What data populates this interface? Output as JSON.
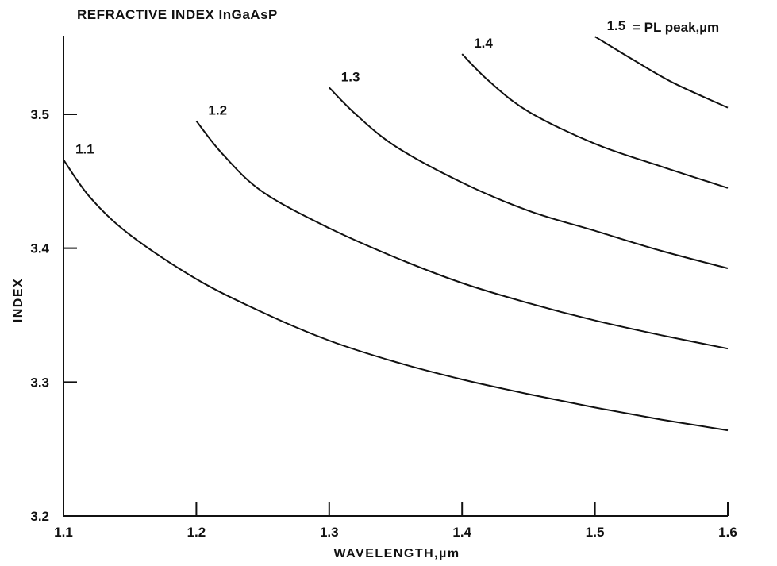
{
  "chart_data": {
    "type": "line",
    "title": "REFRACTIVE INDEX InGaAsP",
    "xlabel": "WAVELENGTH,µm",
    "ylabel": "INDEX",
    "xlim": [
      1.1,
      1.6
    ],
    "ylim": [
      3.2,
      3.56
    ],
    "x_ticks": [
      "1.1",
      "1.2",
      "1.3",
      "1.4",
      "1.5",
      "1.6"
    ],
    "y_ticks": [
      "3.2",
      "3.3",
      "3.4",
      "3.5"
    ],
    "legend_text": "= PL peak,µm",
    "grid": false,
    "series": [
      {
        "name": "1.1",
        "points": [
          [
            1.1,
            3.466
          ],
          [
            1.12,
            3.438
          ],
          [
            1.15,
            3.41
          ],
          [
            1.2,
            3.377
          ],
          [
            1.25,
            3.352
          ],
          [
            1.3,
            3.331
          ],
          [
            1.35,
            3.315
          ],
          [
            1.4,
            3.302
          ],
          [
            1.45,
            3.291
          ],
          [
            1.5,
            3.281
          ],
          [
            1.55,
            3.272
          ],
          [
            1.6,
            3.264
          ]
        ]
      },
      {
        "name": "1.2",
        "points": [
          [
            1.2,
            3.495
          ],
          [
            1.22,
            3.47
          ],
          [
            1.25,
            3.442
          ],
          [
            1.3,
            3.415
          ],
          [
            1.35,
            3.393
          ],
          [
            1.4,
            3.374
          ],
          [
            1.45,
            3.359
          ],
          [
            1.5,
            3.346
          ],
          [
            1.55,
            3.335
          ],
          [
            1.6,
            3.325
          ]
        ]
      },
      {
        "name": "1.3",
        "points": [
          [
            1.3,
            3.52
          ],
          [
            1.32,
            3.5
          ],
          [
            1.35,
            3.476
          ],
          [
            1.4,
            3.449
          ],
          [
            1.45,
            3.428
          ],
          [
            1.5,
            3.413
          ],
          [
            1.55,
            3.398
          ],
          [
            1.6,
            3.385
          ]
        ]
      },
      {
        "name": "1.4",
        "points": [
          [
            1.4,
            3.545
          ],
          [
            1.42,
            3.525
          ],
          [
            1.45,
            3.502
          ],
          [
            1.5,
            3.478
          ],
          [
            1.55,
            3.461
          ],
          [
            1.6,
            3.445
          ]
        ]
      },
      {
        "name": "1.5",
        "points": [
          [
            1.5,
            3.558
          ],
          [
            1.53,
            3.54
          ],
          [
            1.56,
            3.523
          ],
          [
            1.6,
            3.505
          ]
        ]
      }
    ]
  }
}
